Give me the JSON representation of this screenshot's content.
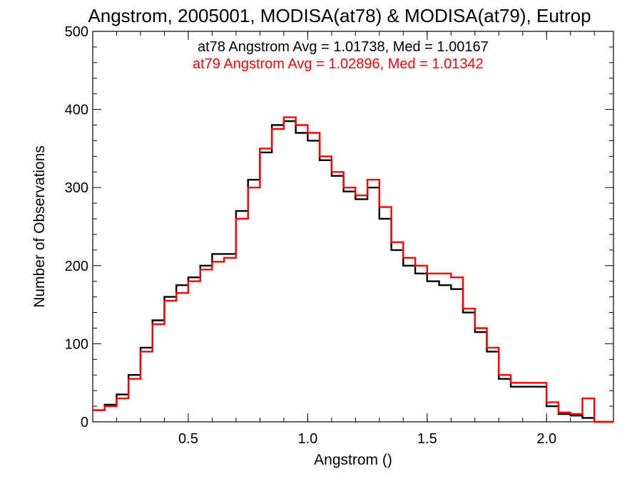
{
  "chart_data": {
    "type": "line",
    "title": "Angstrom, 2005001, MODISA(at78) & MODISA(at79), Eutrop",
    "xlabel": "Angstrom ()",
    "ylabel": "Number of Observations",
    "xlim": [
      0.1,
      2.28
    ],
    "ylim": [
      0,
      500
    ],
    "xticks": [
      0.5,
      1.0,
      1.5,
      2.0
    ],
    "xtick_labels": [
      "0.5",
      "1.0",
      "1.5",
      "2.0"
    ],
    "yticks": [
      0,
      100,
      200,
      300,
      400,
      500
    ],
    "ytick_labels": [
      "0",
      "100",
      "200",
      "300",
      "400",
      "500"
    ],
    "step_style": "histogram",
    "annotations": [
      {
        "text": "at78 Angstrom Avg = 1.01738, Med = 1.00167",
        "color": "#000000"
      },
      {
        "text": "at79 Angstrom Avg = 1.02896, Med = 1.01342",
        "color": "#ff0000"
      }
    ],
    "series": [
      {
        "color": "#000000",
        "x": [
          0.1,
          0.15,
          0.2,
          0.25,
          0.3,
          0.35,
          0.4,
          0.45,
          0.5,
          0.55,
          0.6,
          0.65,
          0.7,
          0.75,
          0.8,
          0.85,
          0.9,
          0.95,
          1.0,
          1.05,
          1.1,
          1.15,
          1.2,
          1.25,
          1.3,
          1.35,
          1.4,
          1.45,
          1.5,
          1.55,
          1.6,
          1.65,
          1.7,
          1.75,
          1.8,
          1.85,
          1.9,
          1.95,
          2.0,
          2.05,
          2.1,
          2.15,
          2.2,
          2.28
        ],
        "y": [
          15,
          22,
          35,
          60,
          95,
          130,
          160,
          175,
          185,
          200,
          215,
          215,
          270,
          310,
          345,
          380,
          385,
          370,
          360,
          335,
          315,
          295,
          285,
          300,
          260,
          220,
          200,
          190,
          180,
          175,
          170,
          140,
          115,
          90,
          55,
          45,
          45,
          45,
          20,
          10,
          8,
          5,
          0,
          0
        ]
      },
      {
        "color": "#ff0000",
        "x": [
          0.1,
          0.15,
          0.2,
          0.25,
          0.3,
          0.35,
          0.4,
          0.45,
          0.5,
          0.55,
          0.6,
          0.65,
          0.7,
          0.75,
          0.8,
          0.85,
          0.9,
          0.95,
          1.0,
          1.05,
          1.1,
          1.15,
          1.2,
          1.25,
          1.3,
          1.35,
          1.4,
          1.45,
          1.5,
          1.55,
          1.6,
          1.65,
          1.7,
          1.75,
          1.8,
          1.85,
          1.9,
          1.95,
          2.0,
          2.05,
          2.1,
          2.15,
          2.2,
          2.28
        ],
        "y": [
          15,
          20,
          30,
          55,
          90,
          125,
          155,
          165,
          180,
          195,
          205,
          210,
          260,
          300,
          350,
          375,
          390,
          380,
          370,
          340,
          320,
          300,
          290,
          310,
          275,
          230,
          210,
          200,
          190,
          190,
          185,
          145,
          120,
          95,
          60,
          50,
          50,
          50,
          25,
          12,
          10,
          30,
          0,
          0
        ]
      }
    ]
  }
}
